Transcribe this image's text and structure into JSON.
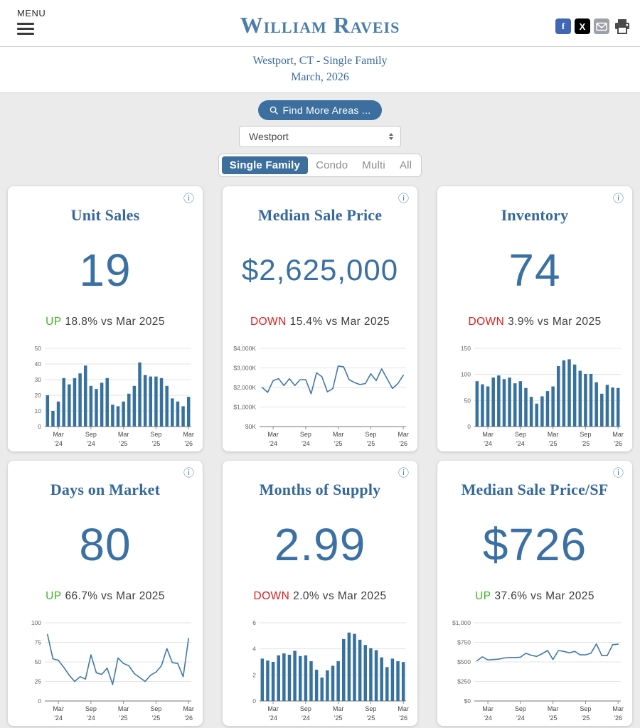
{
  "header": {
    "menu_label": "MENU",
    "brand": "William Raveis",
    "social": {
      "facebook_glyph": "f",
      "x_glyph": "X"
    }
  },
  "subtitle": {
    "location": "Westport, CT - Single Family",
    "period": "March, 2026"
  },
  "controls": {
    "find_more_label": "Find More Areas ...",
    "area_value": "Westport",
    "tabs": [
      {
        "label": "Single Family",
        "active": true
      },
      {
        "label": "Condo",
        "active": false
      },
      {
        "label": "Multi",
        "active": false
      },
      {
        "label": "All",
        "active": false
      }
    ]
  },
  "shared": {
    "info_icon_glyph": "ⓘ",
    "x_ticks": [
      {
        "index": 2,
        "month": "Mar",
        "year": "'24"
      },
      {
        "index": 8,
        "month": "Sep",
        "year": "'24"
      },
      {
        "index": 14,
        "month": "Mar",
        "year": "'25"
      },
      {
        "index": 20,
        "month": "Sep",
        "year": "'25"
      },
      {
        "index": 26,
        "month": "Mar",
        "year": "'26"
      }
    ]
  },
  "colors": {
    "brand_blue": "#4a7dab",
    "accent_blue": "#3d6f9e",
    "chart_bar_blue": "#36719f",
    "chart_line_blue": "#3f78ae",
    "up_green": "#3cb521",
    "down_red": "#e21b1b"
  },
  "chart_data": [
    {
      "type": "bar",
      "title": "Unit Sales",
      "ymax": 50,
      "y_ticks": [
        {
          "value": 0,
          "label": "0"
        },
        {
          "value": 10,
          "label": "10"
        },
        {
          "value": 20,
          "label": "20"
        },
        {
          "value": 30,
          "label": "30"
        },
        {
          "value": 40,
          "label": "40"
        },
        {
          "value": 50,
          "label": "50"
        }
      ],
      "values": [
        20,
        10,
        16,
        31,
        27,
        31,
        34,
        39,
        26,
        24,
        28,
        31,
        14,
        13,
        16,
        21,
        26,
        41,
        33,
        32,
        32,
        31,
        26,
        18,
        16,
        13,
        19
      ]
    },
    {
      "type": "line",
      "title": "Median Sale Price",
      "ymax": 4000,
      "y_ticks": [
        {
          "value": 0,
          "label": "$0K"
        },
        {
          "value": 1000,
          "label": "$1,000K"
        },
        {
          "value": 2000,
          "label": "$2,000K"
        },
        {
          "value": 3000,
          "label": "$3,000K"
        },
        {
          "value": 4000,
          "label": "$4,000K"
        }
      ],
      "values": [
        2000,
        1750,
        2350,
        2450,
        2100,
        2450,
        2100,
        2400,
        2400,
        1675,
        2750,
        2550,
        1775,
        1950,
        3100,
        3050,
        2400,
        2250,
        2150,
        2200,
        2700,
        2350,
        2950,
        2450,
        1950,
        2200,
        2625
      ]
    },
    {
      "type": "bar",
      "title": "Inventory",
      "ymax": 150,
      "y_ticks": [
        {
          "value": 0,
          "label": "0"
        },
        {
          "value": 50,
          "label": "50"
        },
        {
          "value": 100,
          "label": "100"
        },
        {
          "value": 150,
          "label": "150"
        }
      ],
      "values": [
        87,
        81,
        77,
        94,
        98,
        91,
        94,
        83,
        87,
        74,
        57,
        44,
        58,
        68,
        77,
        116,
        127,
        129,
        119,
        107,
        101,
        101,
        85,
        63,
        80,
        75,
        74
      ]
    },
    {
      "type": "line",
      "title": "Days on Market",
      "ymax": 100,
      "y_ticks": [
        {
          "value": 0,
          "label": "0"
        },
        {
          "value": 25,
          "label": "25"
        },
        {
          "value": 50,
          "label": "50"
        },
        {
          "value": 75,
          "label": "75"
        },
        {
          "value": 100,
          "label": "100"
        }
      ],
      "values": [
        85,
        54,
        52,
        43,
        33,
        25,
        31,
        28,
        59,
        36,
        34,
        42,
        21,
        55,
        48,
        45,
        35,
        30,
        25,
        33,
        37,
        45,
        67,
        49,
        48,
        31,
        80
      ]
    },
    {
      "type": "bar",
      "title": "Months of Supply",
      "ymax": 6,
      "y_ticks": [
        {
          "value": 0,
          "label": "0"
        },
        {
          "value": 2,
          "label": "2"
        },
        {
          "value": 4,
          "label": "4"
        },
        {
          "value": 6,
          "label": "6"
        }
      ],
      "values": [
        3.25,
        3.1,
        3.0,
        3.5,
        3.65,
        3.55,
        3.85,
        3.45,
        3.5,
        3.05,
        2.4,
        1.8,
        2.35,
        2.7,
        3.05,
        4.75,
        5.25,
        5.15,
        4.7,
        4.3,
        4.05,
        3.9,
        3.35,
        2.6,
        3.25,
        3.05,
        2.99
      ]
    },
    {
      "type": "line",
      "title": "Median Sale Price/SF",
      "ymax": 1000,
      "y_ticks": [
        {
          "value": 0,
          "label": "$0"
        },
        {
          "value": 250,
          "label": "$250"
        },
        {
          "value": 500,
          "label": "$500"
        },
        {
          "value": 750,
          "label": "$750"
        },
        {
          "value": 1000,
          "label": "$1,000"
        }
      ],
      "values": [
        515,
        565,
        525,
        530,
        535,
        550,
        555,
        555,
        560,
        610,
        585,
        570,
        605,
        645,
        530,
        645,
        635,
        615,
        635,
        590,
        590,
        610,
        730,
        580,
        580,
        720,
        726
      ]
    }
  ],
  "cards": [
    {
      "title": "Unit Sales",
      "value": "19",
      "change": {
        "direction": "UP",
        "rest": "18.8% vs Mar 2025"
      }
    },
    {
      "title": "Median Sale Price",
      "value": "$2,625,000",
      "change": {
        "direction": "DOWN",
        "rest": "15.4% vs Mar 2025"
      }
    },
    {
      "title": "Inventory",
      "value": "74",
      "change": {
        "direction": "DOWN",
        "rest": "3.9% vs Mar 2025"
      }
    },
    {
      "title": "Days on Market",
      "value": "80",
      "change": {
        "direction": "UP",
        "rest": "66.7% vs Mar 2025"
      }
    },
    {
      "title": "Months of Supply",
      "value": "2.99",
      "change": {
        "direction": "DOWN",
        "rest": "2.0% vs Mar 2025"
      }
    },
    {
      "title": "Median Sale Price/SF",
      "value": "$726",
      "change": {
        "direction": "UP",
        "rest": "37.6% vs Mar 2025"
      }
    }
  ]
}
